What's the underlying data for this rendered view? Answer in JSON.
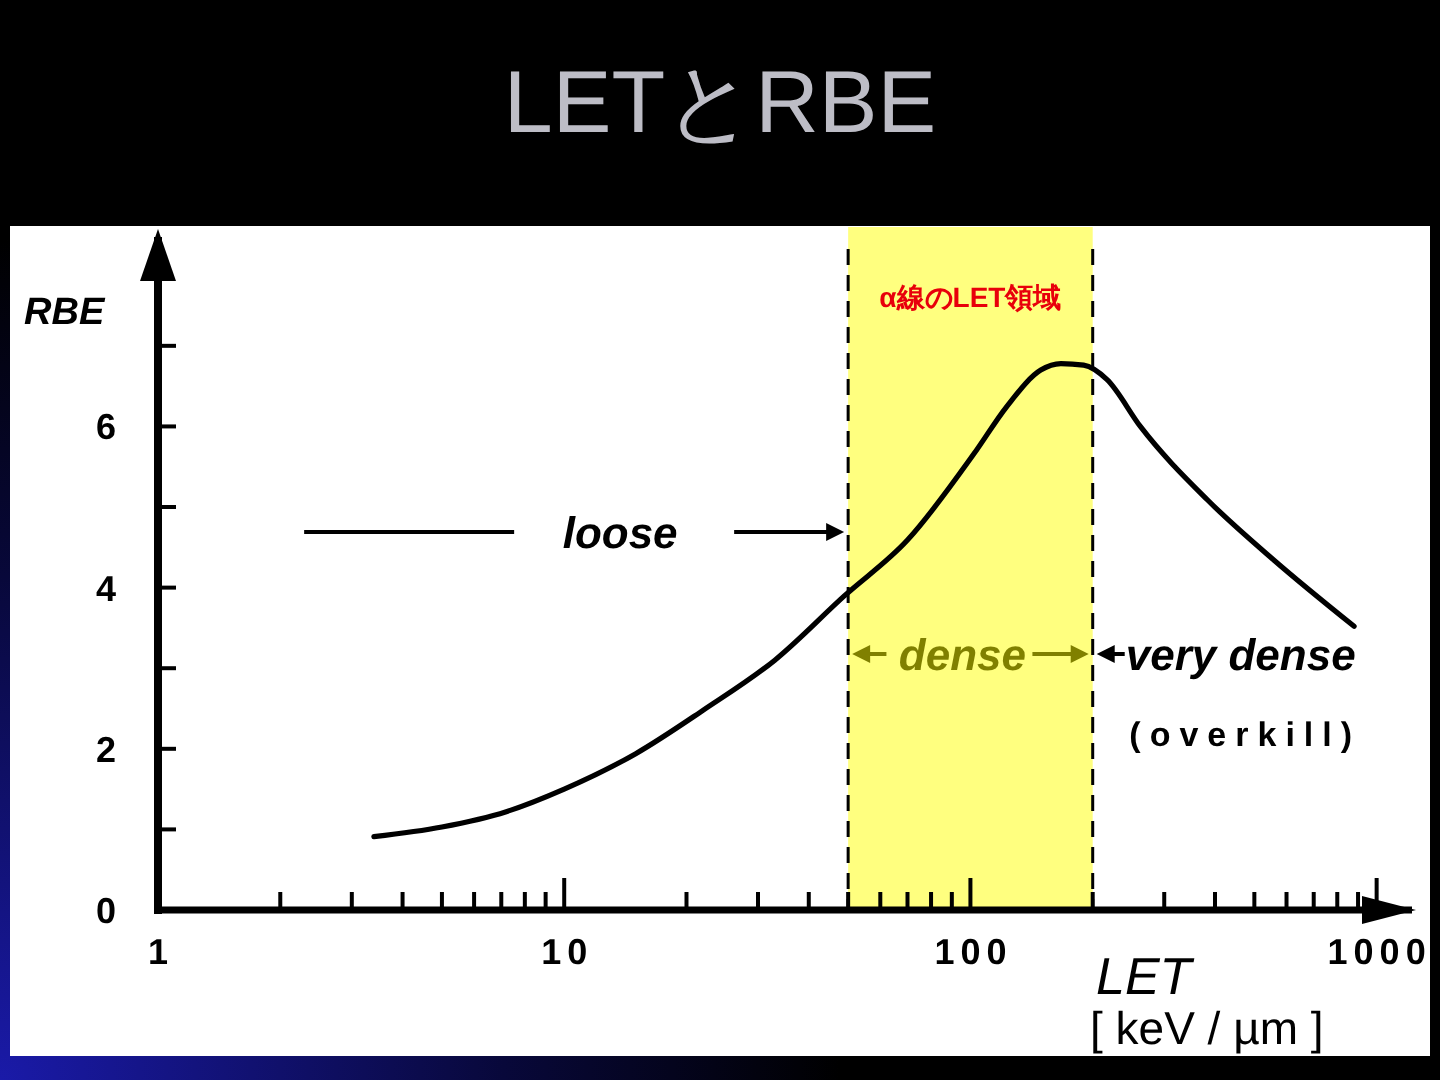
{
  "chart_data": {
    "type": "line",
    "title": "LETとRBE",
    "xlabel": "LET\n[ keV / µm ]",
    "ylabel": "RBE",
    "x": [
      3.4,
      5,
      7.2,
      10,
      15,
      22,
      33,
      49,
      70,
      102,
      123,
      149,
      167,
      190,
      217,
      262,
      383,
      559,
      880
    ],
    "series": [
      {
        "color": "#000000",
        "values": [
          0.91,
          1.03,
          1.22,
          1.5,
          1.94,
          2.48,
          3.1,
          3.9,
          4.59,
          5.66,
          6.25,
          6.7,
          6.78,
          6.76,
          6.58,
          6.0,
          5.09,
          4.34,
          3.52
        ]
      }
    ],
    "log": "x",
    "xlim": [
      1,
      1250
    ],
    "ylim": [
      0,
      8.4
    ],
    "xticks": [
      1,
      {
        "value": 2,
        "label": null
      },
      {
        "value": 3,
        "label": null
      },
      {
        "value": 4,
        "label": null
      },
      {
        "value": 5,
        "label": null
      },
      {
        "value": 6,
        "label": null
      },
      {
        "value": 7,
        "label": null
      },
      {
        "value": 8,
        "label": null
      },
      {
        "value": 9,
        "label": null
      },
      10,
      {
        "value": 20,
        "label": null
      },
      {
        "value": 30,
        "label": null
      },
      {
        "value": 40,
        "label": null
      },
      {
        "value": 50,
        "label": null
      },
      {
        "value": 60,
        "label": null
      },
      {
        "value": 70,
        "label": null
      },
      {
        "value": 80,
        "label": null
      },
      {
        "value": 90,
        "label": null
      },
      100,
      {
        "value": 200,
        "label": null
      },
      {
        "value": 300,
        "label": null
      },
      {
        "value": 400,
        "label": null
      },
      {
        "value": 500,
        "label": null
      },
      {
        "value": 600,
        "label": null
      },
      {
        "value": 700,
        "label": null
      },
      {
        "value": 800,
        "label": null
      },
      {
        "value": 900,
        "label": null
      },
      1000
    ],
    "yticks": [
      0,
      {
        "value": 1,
        "label": null
      },
      2,
      {
        "value": 3,
        "label": null
      },
      4,
      {
        "value": 5,
        "label": null
      },
      6,
      {
        "value": 7,
        "label": null
      }
    ],
    "bands": [
      {
        "axis": "x",
        "from": 50,
        "to": 200,
        "label": "α線のLET領域",
        "color": "#ffff00"
      }
    ],
    "ref_lines": [
      {
        "axis": "x",
        "value": 50,
        "line_style": "dashed",
        "color": "#000000"
      },
      {
        "axis": "x",
        "value": 200,
        "line_style": "dashed",
        "color": "#000000"
      }
    ],
    "annotations": [
      "loose",
      "dense",
      "very dense",
      "(overkill)"
    ]
  }
}
